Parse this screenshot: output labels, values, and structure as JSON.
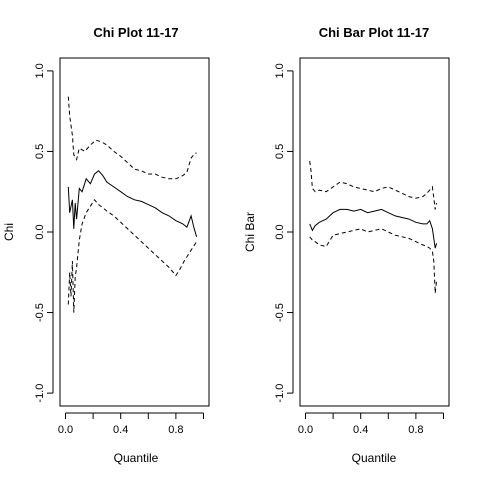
{
  "chart_data": [
    {
      "type": "line",
      "title": "Chi Plot 11-17",
      "xlabel": "Quantile",
      "ylabel": "Chi",
      "xlim": [
        0.0,
        1.0
      ],
      "ylim": [
        -1.0,
        1.0
      ],
      "x_ticks": [
        "0.0",
        "0.4",
        "0.8"
      ],
      "y_ticks": [
        "-1.0",
        "-0.5",
        "0.0",
        "0.5",
        "1.0"
      ],
      "grid": false,
      "legend": "none",
      "series": [
        {
          "style": "dashed",
          "x": [
            0.02,
            0.03,
            0.05,
            0.06,
            0.08,
            0.1,
            0.14,
            0.18,
            0.22,
            0.26,
            0.3,
            0.35,
            0.4,
            0.45,
            0.5,
            0.55,
            0.6,
            0.65,
            0.7,
            0.75,
            0.8,
            0.85,
            0.88,
            0.91,
            0.94,
            0.95
          ],
          "values": [
            0.84,
            0.72,
            0.6,
            0.48,
            0.45,
            0.52,
            0.5,
            0.54,
            0.57,
            0.56,
            0.54,
            0.5,
            0.47,
            0.43,
            0.39,
            0.38,
            0.36,
            0.36,
            0.34,
            0.33,
            0.33,
            0.35,
            0.37,
            0.46,
            0.49,
            0.49
          ]
        },
        {
          "style": "solid",
          "x": [
            0.02,
            0.03,
            0.05,
            0.06,
            0.07,
            0.08,
            0.1,
            0.12,
            0.15,
            0.18,
            0.21,
            0.24,
            0.27,
            0.3,
            0.35,
            0.4,
            0.45,
            0.5,
            0.55,
            0.6,
            0.65,
            0.7,
            0.75,
            0.8,
            0.85,
            0.88,
            0.91,
            0.93,
            0.95
          ],
          "values": [
            0.28,
            0.12,
            0.2,
            0.02,
            0.18,
            0.08,
            0.27,
            0.25,
            0.33,
            0.3,
            0.36,
            0.38,
            0.35,
            0.31,
            0.28,
            0.25,
            0.22,
            0.2,
            0.19,
            0.17,
            0.15,
            0.12,
            0.1,
            0.07,
            0.05,
            0.03,
            0.1,
            0.03,
            -0.03
          ]
        },
        {
          "style": "dashed",
          "x": [
            0.02,
            0.03,
            0.04,
            0.05,
            0.06,
            0.07,
            0.08,
            0.1,
            0.12,
            0.15,
            0.18,
            0.21,
            0.24,
            0.27,
            0.3,
            0.35,
            0.4,
            0.45,
            0.5,
            0.55,
            0.6,
            0.65,
            0.7,
            0.75,
            0.8,
            0.83,
            0.86,
            0.89,
            0.92,
            0.95
          ],
          "values": [
            -0.45,
            -0.25,
            -0.4,
            -0.18,
            -0.5,
            -0.28,
            -0.22,
            -0.05,
            0.05,
            0.12,
            0.16,
            0.2,
            0.17,
            0.15,
            0.13,
            0.1,
            0.06,
            0.02,
            -0.02,
            -0.06,
            -0.1,
            -0.14,
            -0.18,
            -0.22,
            -0.27,
            -0.23,
            -0.18,
            -0.14,
            -0.1,
            -0.06
          ]
        }
      ]
    },
    {
      "type": "line",
      "title": "Chi Bar Plot 11-17",
      "xlabel": "Quantile",
      "ylabel": "Chi Bar",
      "xlim": [
        0.0,
        1.0
      ],
      "ylim": [
        -1.0,
        1.0
      ],
      "x_ticks": [
        "0.0",
        "0.4",
        "0.8"
      ],
      "y_ticks": [
        "-1.0",
        "-0.5",
        "0.0",
        "0.5",
        "1.0"
      ],
      "grid": false,
      "legend": "none",
      "series": [
        {
          "style": "dashed",
          "x": [
            0.03,
            0.04,
            0.05,
            0.07,
            0.1,
            0.15,
            0.2,
            0.25,
            0.3,
            0.35,
            0.4,
            0.45,
            0.5,
            0.55,
            0.6,
            0.65,
            0.7,
            0.75,
            0.8,
            0.85,
            0.88,
            0.9,
            0.92,
            0.94,
            0.95
          ],
          "values": [
            0.44,
            0.38,
            0.27,
            0.25,
            0.26,
            0.25,
            0.28,
            0.31,
            0.3,
            0.28,
            0.27,
            0.26,
            0.25,
            0.27,
            0.28,
            0.26,
            0.24,
            0.22,
            0.21,
            0.22,
            0.24,
            0.26,
            0.28,
            0.14,
            0.18
          ]
        },
        {
          "style": "solid",
          "x": [
            0.03,
            0.05,
            0.07,
            0.1,
            0.15,
            0.2,
            0.25,
            0.3,
            0.35,
            0.4,
            0.45,
            0.5,
            0.55,
            0.6,
            0.65,
            0.7,
            0.75,
            0.8,
            0.85,
            0.88,
            0.9,
            0.92,
            0.94,
            0.95
          ],
          "values": [
            0.05,
            0.01,
            0.04,
            0.06,
            0.08,
            0.12,
            0.14,
            0.14,
            0.13,
            0.14,
            0.12,
            0.13,
            0.14,
            0.12,
            0.1,
            0.09,
            0.08,
            0.06,
            0.05,
            0.05,
            0.07,
            0.02,
            -0.1,
            -0.07
          ]
        },
        {
          "style": "dashed",
          "x": [
            0.03,
            0.05,
            0.07,
            0.1,
            0.15,
            0.2,
            0.25,
            0.3,
            0.35,
            0.4,
            0.45,
            0.5,
            0.55,
            0.6,
            0.65,
            0.7,
            0.75,
            0.8,
            0.85,
            0.88,
            0.9,
            0.92,
            0.93,
            0.94,
            0.95
          ],
          "values": [
            -0.03,
            -0.05,
            -0.06,
            -0.08,
            -0.09,
            -0.02,
            -0.01,
            0.0,
            0.01,
            0.02,
            0.0,
            0.01,
            0.02,
            0.0,
            -0.02,
            -0.03,
            -0.04,
            -0.06,
            -0.08,
            -0.09,
            -0.1,
            -0.12,
            -0.18,
            -0.38,
            -0.3
          ]
        }
      ]
    }
  ]
}
